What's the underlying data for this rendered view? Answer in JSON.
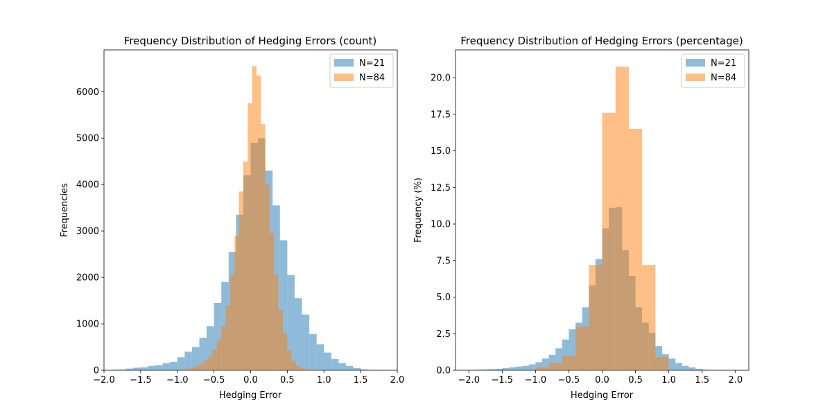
{
  "chart_data": [
    {
      "type": "bar",
      "title": "Frequency Distribution of Hedging Errors (count)",
      "xlabel": "Hedging Error",
      "ylabel": "Frequencies",
      "xlim": [
        -2.0,
        2.0
      ],
      "ylim": [
        0,
        6900
      ],
      "xticks": [
        "−2.0",
        "−1.5",
        "−1.0",
        "−0.5",
        "0.0",
        "0.5",
        "1.0",
        "1.5",
        "2.0"
      ],
      "yticks": [
        "0",
        "1000",
        "2000",
        "3000",
        "4000",
        "5000",
        "6000"
      ],
      "legend_position": "top-right",
      "grid": false,
      "series": [
        {
          "name": "N=21",
          "color": "#1f77b4",
          "bin_width": 0.1,
          "bin_starts": [
            -2.0,
            -1.9,
            -1.8,
            -1.7,
            -1.6,
            -1.5,
            -1.4,
            -1.3,
            -1.2,
            -1.1,
            -1.0,
            -0.9,
            -0.8,
            -0.7,
            -0.6,
            -0.5,
            -0.4,
            -0.3,
            -0.2,
            -0.1,
            0.0,
            0.1,
            0.2,
            0.3,
            0.4,
            0.5,
            0.6,
            0.7,
            0.8,
            0.9,
            1.0,
            1.1,
            1.2,
            1.3,
            1.4,
            1.5,
            1.6,
            1.7,
            1.8,
            1.9
          ],
          "values": [
            8,
            12,
            18,
            35,
            55,
            65,
            95,
            110,
            150,
            180,
            280,
            400,
            500,
            700,
            950,
            1450,
            1900,
            2550,
            3350,
            4200,
            4900,
            5000,
            4300,
            3550,
            2800,
            2050,
            1550,
            1200,
            780,
            560,
            380,
            240,
            150,
            90,
            45,
            20,
            10,
            5,
            3,
            2
          ]
        },
        {
          "name": "N=84",
          "color": "#ff7f0e",
          "bin_width": 0.0597,
          "bin_starts": [
            -1.0,
            -0.94,
            -0.88,
            -0.82,
            -0.76,
            -0.7,
            -0.64,
            -0.58,
            -0.52,
            -0.46,
            -0.4,
            -0.34,
            -0.28,
            -0.22,
            -0.16,
            -0.1,
            -0.04,
            0.02,
            0.08,
            0.14,
            0.2,
            0.26,
            0.32,
            0.38,
            0.44,
            0.5,
            0.56,
            0.62,
            0.68,
            0.74,
            0.8,
            0.86,
            0.92
          ],
          "values": [
            10,
            20,
            35,
            60,
            95,
            140,
            220,
            300,
            450,
            650,
            950,
            1400,
            2050,
            2900,
            3850,
            4500,
            5750,
            6550,
            6350,
            5300,
            4000,
            2950,
            2050,
            1300,
            800,
            420,
            200,
            90,
            45,
            25,
            15,
            8,
            4
          ]
        }
      ]
    },
    {
      "type": "bar",
      "title": "Frequency Distribution of Hedging Errors (percentage)",
      "xlabel": "Hedging Error",
      "ylabel": "Frequency (%)",
      "xlim": [
        -2.2,
        2.2
      ],
      "ylim": [
        0,
        21.9
      ],
      "xticks": [
        "−2.0",
        "−1.5",
        "−1.0",
        "−0.5",
        "0.0",
        "0.5",
        "1.0",
        "1.5",
        "2.0"
      ],
      "yticks": [
        "0.0",
        "2.5",
        "5.0",
        "7.5",
        "10.0",
        "12.5",
        "15.0",
        "17.5",
        "20.0"
      ],
      "legend_position": "top-right",
      "grid": false,
      "series": [
        {
          "name": "N=21",
          "color": "#1f77b4",
          "bin_width": 0.1,
          "bin_starts": [
            -2.0,
            -1.9,
            -1.8,
            -1.7,
            -1.6,
            -1.5,
            -1.4,
            -1.3,
            -1.2,
            -1.1,
            -1.0,
            -0.9,
            -0.8,
            -0.7,
            -0.6,
            -0.5,
            -0.4,
            -0.3,
            -0.2,
            -0.1,
            0.0,
            0.1,
            0.2,
            0.3,
            0.4,
            0.5,
            0.6,
            0.7,
            0.8,
            0.9,
            1.0,
            1.1,
            1.2,
            1.3,
            1.4,
            1.5,
            1.6,
            1.7,
            1.8,
            1.9
          ],
          "values": [
            0.03,
            0.05,
            0.06,
            0.08,
            0.1,
            0.14,
            0.2,
            0.25,
            0.3,
            0.4,
            0.55,
            0.8,
            1.05,
            1.5,
            2.1,
            2.8,
            3.25,
            4.3,
            5.8,
            7.6,
            9.7,
            11.1,
            11.15,
            8.2,
            6.45,
            4.3,
            3.25,
            2.55,
            1.65,
            1.1,
            0.8,
            0.5,
            0.3,
            0.2,
            0.1,
            0.05,
            0.03,
            0.02,
            0.01,
            0.01
          ]
        },
        {
          "name": "N=84",
          "color": "#ff7f0e",
          "bin_width": 0.2,
          "bin_starts": [
            -1.0,
            -0.8,
            -0.6,
            -0.4,
            -0.2,
            0.0,
            0.2,
            0.4,
            0.6,
            0.8
          ],
          "values": [
            0.2,
            0.5,
            1.0,
            3.0,
            7.2,
            17.6,
            20.75,
            16.5,
            7.2,
            0.9
          ]
        }
      ]
    }
  ]
}
